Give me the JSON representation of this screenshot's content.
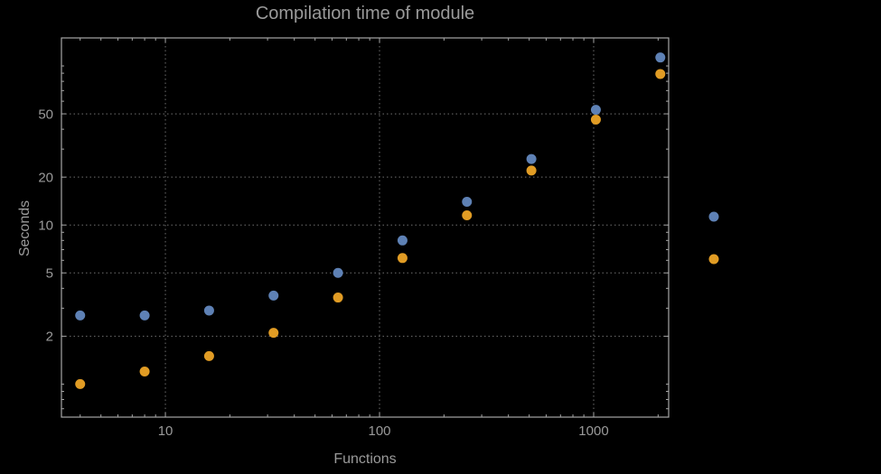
{
  "chart_data": {
    "type": "scatter",
    "title": "Compilation time of module",
    "xlabel": "Functions",
    "ylabel": "Seconds",
    "x_scale": "log",
    "y_scale": "log",
    "xlim": [
      3.27,
      2240
    ],
    "ylim": [
      0.62,
      150
    ],
    "grid": "dotted-at-major-ticks",
    "x_ticks": [
      {
        "value": 10,
        "label": "10"
      },
      {
        "value": 100,
        "label": "100"
      },
      {
        "value": 1000,
        "label": "1000"
      }
    ],
    "y_ticks": [
      {
        "value": 2,
        "label": "2"
      },
      {
        "value": 5,
        "label": "5"
      },
      {
        "value": 10,
        "label": "10"
      },
      {
        "value": 20,
        "label": "20"
      },
      {
        "value": 50,
        "label": "50"
      }
    ],
    "series": [
      {
        "name": "series-blue",
        "color": "#5E81B5",
        "x": [
          4,
          8,
          16,
          32,
          64,
          128,
          256,
          512,
          1024,
          2048
        ],
        "y": [
          2.7,
          2.7,
          2.9,
          3.6,
          5.0,
          8.0,
          14,
          26,
          53,
          113
        ]
      },
      {
        "name": "series-orange",
        "color": "#E19C24",
        "x": [
          4,
          8,
          16,
          32,
          64,
          128,
          256,
          512,
          1024,
          2048
        ],
        "y": [
          1.0,
          1.2,
          1.5,
          2.1,
          3.5,
          6.2,
          11.5,
          22,
          46,
          89
        ]
      }
    ],
    "legend": {
      "position": "outside-right",
      "markers": [
        {
          "series": "series-blue",
          "color": "#5E81B5",
          "label": ""
        },
        {
          "series": "series-orange",
          "color": "#E19C24",
          "label": ""
        }
      ]
    },
    "colors": {
      "frame": "#a6a6a6",
      "grid": "#6f6f6f",
      "text": "#9a9a9a",
      "background": "#000000"
    }
  }
}
